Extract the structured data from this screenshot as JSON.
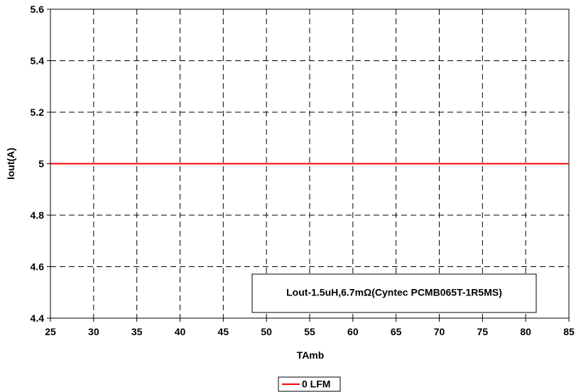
{
  "chart_data": {
    "type": "line",
    "xlabel": "TAmb",
    "ylabel": "Iout(A)",
    "xlim": [
      25,
      85
    ],
    "ylim": [
      4.4,
      5.6
    ],
    "x_ticks": [
      "25",
      "30",
      "35",
      "40",
      "45",
      "50",
      "55",
      "60",
      "65",
      "70",
      "75",
      "80",
      "85"
    ],
    "y_ticks": [
      "4.4",
      "4.6",
      "4.8",
      "5",
      "5.2",
      "5.4",
      "5.6"
    ],
    "grid": true,
    "legend_position": "bottom-center",
    "series": [
      {
        "name": "0 LFM",
        "color": "#ff0000",
        "x": [
          25,
          85
        ],
        "y": [
          5,
          5
        ]
      }
    ],
    "annotation": "Lout-1.5uH,6.7mΩ(Cyntec PCMB065T-1R5MS)"
  }
}
